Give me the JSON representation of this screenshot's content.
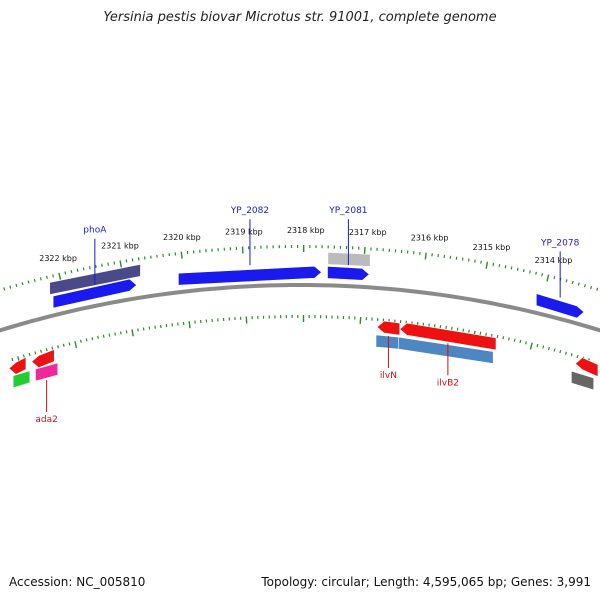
{
  "title": "Yersinia pestis biovar Microtus str. 91001, complete genome",
  "footer": {
    "accession": "Accession: NC_005810",
    "summary": "Topology: circular; Length: 4,595,065 bp; Genes: 3,991"
  },
  "colors": {
    "backbone": "#8a8a8a",
    "tick": "#2d8a2d",
    "forward_gene": "#1a1aee",
    "reverse_gene": "#ee1111",
    "forward_label": "#1a1acc",
    "reverse_label": "#cc1111",
    "pseudo_gene": "#4a4a8a",
    "rna_gene": "#4d86c0",
    "pink_gene": "#ee2a9a",
    "green_gene": "#22cc33",
    "gray_gene": "#bbbbbb",
    "dark_gray_gene": "#666666"
  },
  "scale": {
    "ticks": [
      {
        "label": "2322 kbp",
        "kbp": 2322
      },
      {
        "label": "2321 kbp",
        "kbp": 2321
      },
      {
        "label": "2320 kbp",
        "kbp": 2320
      },
      {
        "label": "2319 kbp",
        "kbp": 2319
      },
      {
        "label": "2318 kbp",
        "kbp": 2318
      },
      {
        "label": "2317 kbp",
        "kbp": 2317
      },
      {
        "label": "2316 kbp",
        "kbp": 2316
      },
      {
        "label": "2315 kbp",
        "kbp": 2315
      },
      {
        "label": "2314 kbp",
        "kbp": 2314
      }
    ]
  },
  "features": [
    {
      "name": "phoA-track-block",
      "label": "",
      "start_kbp": 2322.2,
      "end_kbp": 2320.7,
      "strand": "+",
      "track": "outer",
      "color": "pseudo_gene"
    },
    {
      "name": "phoA",
      "label": "phoA",
      "start_kbp": 2322.2,
      "end_kbp": 2320.8,
      "strand": "+",
      "track": "inner",
      "color": "forward_gene"
    },
    {
      "name": "YP_2082",
      "label": "YP_2082",
      "start_kbp": 2320.1,
      "end_kbp": 2317.7,
      "strand": "+",
      "track": "inner",
      "color": "forward_gene"
    },
    {
      "name": "YP_2081-track-block",
      "label": "",
      "start_kbp": 2317.6,
      "end_kbp": 2316.9,
      "strand": "+",
      "track": "outer",
      "color": "gray_gene"
    },
    {
      "name": "YP_2081",
      "label": "YP_2081",
      "start_kbp": 2317.6,
      "end_kbp": 2316.9,
      "strand": "+",
      "track": "inner",
      "color": "forward_gene"
    },
    {
      "name": "YP_2078",
      "label": "YP_2078",
      "start_kbp": 2314.1,
      "end_kbp": 2313.3,
      "strand": "+",
      "track": "inner",
      "color": "forward_gene"
    },
    {
      "name": "ada2-left",
      "label": "",
      "start_kbp": 2323.2,
      "end_kbp": 2322.9,
      "strand": "-",
      "track": "inner",
      "color": "reverse_gene"
    },
    {
      "name": "ada2-right",
      "label": "",
      "start_kbp": 2322.8,
      "end_kbp": 2322.4,
      "strand": "-",
      "track": "inner",
      "color": "reverse_gene"
    },
    {
      "name": "ada2",
      "label": "ada2",
      "start_kbp": 2322.8,
      "end_kbp": 2322.4,
      "strand": "-",
      "track": "outer",
      "color": "pink_gene"
    },
    {
      "name": "ada2-green",
      "label": "",
      "start_kbp": 2323.2,
      "end_kbp": 2322.9,
      "strand": "-",
      "track": "outer",
      "color": "green_gene"
    },
    {
      "name": "ilvN",
      "label": "ilvN",
      "start_kbp": 2316.7,
      "end_kbp": 2316.3,
      "strand": "-",
      "track": "inner",
      "color": "reverse_gene"
    },
    {
      "name": "ilvN-rna",
      "label": "",
      "start_kbp": 2316.7,
      "end_kbp": 2316.3,
      "strand": "-",
      "track": "outer",
      "color": "rna_gene"
    },
    {
      "name": "ilvB2",
      "label": "ilvB2",
      "start_kbp": 2316.3,
      "end_kbp": 2314.6,
      "strand": "-",
      "track": "inner",
      "color": "reverse_gene"
    },
    {
      "name": "ilvB2-rna",
      "label": "",
      "start_kbp": 2316.3,
      "end_kbp": 2314.6,
      "strand": "-",
      "track": "outer",
      "color": "rna_gene"
    },
    {
      "name": "right-reverse",
      "label": "",
      "start_kbp": 2313.2,
      "end_kbp": 2312.8,
      "strand": "-",
      "track": "inner",
      "color": "reverse_gene"
    },
    {
      "name": "right-dark",
      "label": "",
      "start_kbp": 2313.2,
      "end_kbp": 2312.8,
      "strand": "-",
      "track": "outer",
      "color": "dark_gray_gene"
    }
  ]
}
